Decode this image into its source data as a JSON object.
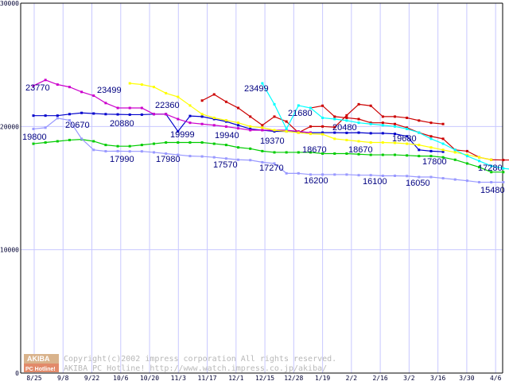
{
  "chart_data": {
    "type": "line",
    "ylim": [
      0,
      30000
    ],
    "y_ticks": [
      "0",
      "10000",
      "20000",
      "30000"
    ],
    "x_tick_labels": [
      "8/25",
      "9/8",
      "9/22",
      "10/6",
      "10/20",
      "11/3",
      "11/17",
      "12/1",
      "12/15",
      "12/28",
      "1/19",
      "2/2",
      "2/16",
      "3/2",
      "3/16",
      "3/30",
      "4/6"
    ],
    "grid": "vertical",
    "series": [
      {
        "color": "#0000cc",
        "marker": "square",
        "x": [
          0,
          1,
          2,
          3,
          4,
          5,
          6,
          7,
          8,
          9,
          10,
          11,
          12,
          13,
          14,
          15,
          16,
          17,
          18,
          19,
          20,
          21,
          22,
          23,
          24,
          25,
          26,
          27,
          28,
          29,
          30,
          31,
          32,
          33,
          34
        ],
        "y": [
          20880,
          20880,
          20880,
          21000,
          21100,
          21050,
          21000,
          20980,
          20960,
          20960,
          21000,
          21000,
          19600,
          20850,
          20800,
          20600,
          20400,
          20100,
          19800,
          19700,
          19600,
          19600,
          19560,
          19500,
          19500,
          19500,
          19480,
          19500,
          19450,
          19450,
          19400,
          19200,
          18100,
          18000,
          17950
        ]
      },
      {
        "color": "#cc0000",
        "marker": "square",
        "x": [
          14,
          15,
          16,
          17,
          18,
          19,
          20,
          21,
          22,
          23,
          24,
          25,
          26,
          27,
          28,
          29,
          30,
          31,
          32,
          33,
          34
        ],
        "y": [
          22100,
          22600,
          22000,
          21500,
          20800,
          20100,
          20800,
          20400,
          19500,
          19999,
          20000,
          19940,
          20900,
          21800,
          21680,
          20800,
          20800,
          20700,
          20480,
          20300,
          20200
        ],
        "x2": [
          23,
          24,
          25,
          26,
          27,
          28,
          29,
          30,
          31,
          32,
          33,
          34,
          35,
          36,
          37,
          38,
          39,
          40
        ],
        "y2": [
          21500,
          21680,
          20800,
          20700,
          20600,
          20300,
          20300,
          20200,
          19900,
          19500,
          19200,
          19000,
          18100,
          18000,
          17500,
          17300,
          17280,
          17280
        ]
      },
      {
        "color": "#cc00cc",
        "marker": "square",
        "x": [
          0,
          1,
          2,
          3,
          4,
          5,
          6,
          7,
          8,
          9,
          10,
          11,
          12,
          13,
          14,
          15,
          16,
          17,
          18,
          19,
          20,
          21,
          22,
          23
        ],
        "y": [
          23300,
          23770,
          23400,
          23200,
          22800,
          22500,
          21900,
          21500,
          21500,
          21500,
          21000,
          21000,
          20600,
          20300,
          20200,
          20100,
          19990,
          19850,
          19700,
          19700,
          19700,
          19700,
          19600,
          19500
        ]
      },
      {
        "color": "#ffff00",
        "marker": "square",
        "x": [
          8,
          9,
          10,
          11,
          12,
          13,
          14,
          15,
          16,
          17,
          18,
          19,
          20,
          21,
          22,
          23,
          24,
          25,
          26,
          27,
          28,
          29,
          30,
          31,
          32,
          33,
          34,
          35,
          36,
          37,
          38
        ],
        "y": [
          23499,
          23400,
          23200,
          22700,
          22400,
          21700,
          21000,
          20700,
          20500,
          20300,
          20000,
          19900,
          19700,
          19600,
          19500,
          19400,
          19370,
          19000,
          18900,
          18800,
          18700,
          18700,
          18670,
          18600,
          18500,
          18300,
          18100,
          17900,
          17700,
          17500,
          17300
        ]
      },
      {
        "color": "#00ffff",
        "marker": "square",
        "x": [
          19,
          20,
          21,
          22,
          23,
          24,
          25,
          26,
          27,
          28,
          29,
          30,
          31,
          32,
          33,
          34,
          35,
          36,
          37,
          38,
          39,
          40
        ],
        "y": [
          23499,
          21800,
          19800,
          21700,
          21500,
          20700,
          20600,
          20480,
          20300,
          20200,
          20100,
          20000,
          19800,
          19500,
          19000,
          18600,
          18100,
          17600,
          17200,
          16800,
          16600,
          16500
        ]
      },
      {
        "color": "#00cc00",
        "marker": "square",
        "x": [
          0,
          1,
          2,
          3,
          4,
          5,
          6,
          7,
          8,
          9,
          10,
          11,
          12,
          13,
          14,
          15,
          16,
          17,
          18,
          19,
          20,
          21,
          22,
          23,
          24,
          25,
          26,
          27,
          28,
          29,
          30,
          31,
          32,
          33,
          34,
          35,
          36,
          37,
          38,
          39
        ],
        "y": [
          18600,
          18700,
          18800,
          18900,
          18950,
          18800,
          18500,
          18400,
          18400,
          18500,
          18600,
          18700,
          18700,
          18700,
          18700,
          18600,
          18500,
          18300,
          18200,
          18000,
          17900,
          17900,
          17900,
          17900,
          17800,
          17800,
          17800,
          17750,
          17700,
          17700,
          17700,
          17650,
          17600,
          17600,
          17500,
          17300,
          17000,
          16700,
          16300,
          16300
        ]
      },
      {
        "color": "#9999ff",
        "marker": "square",
        "x": [
          0,
          1,
          2,
          3,
          4,
          5,
          6,
          7,
          8,
          9,
          10,
          11,
          12,
          13,
          14,
          15,
          16,
          17,
          18,
          19,
          20,
          21,
          22,
          23,
          24,
          25,
          26,
          27,
          28,
          29,
          30,
          31,
          32,
          33,
          34,
          35,
          36,
          37,
          38,
          39
        ],
        "y": [
          19800,
          19900,
          20670,
          20500,
          19000,
          18100,
          17990,
          18000,
          17980,
          17980,
          17900,
          17800,
          17700,
          17600,
          17570,
          17500,
          17400,
          17300,
          17270,
          17100,
          17000,
          16200,
          16200,
          16100,
          16100,
          16100,
          16100,
          16050,
          16050,
          16000,
          16000,
          15980,
          15900,
          15900,
          15800,
          15700,
          15600,
          15480,
          15480,
          15480
        ]
      }
    ],
    "data_labels": [
      "23770",
      "23499",
      "22360",
      "20670",
      "20880",
      "19800",
      "19999",
      "19940",
      "17990",
      "17980",
      "17570",
      "23499",
      "21680",
      "20480",
      "19370",
      "18670",
      "18670",
      "19680",
      "17270",
      "16200",
      "16100",
      "16050",
      "17800",
      "17280",
      "15480"
    ]
  },
  "copyright": {
    "logo_top": "AKIBA",
    "logo_bottom": "PC Hotline!",
    "line1": "Copyright(c)2002 impress corporation All rights reserved.",
    "line2": "AKIBA PC Hotline!  http://www.watch.impress.co.jp/akiba/"
  }
}
